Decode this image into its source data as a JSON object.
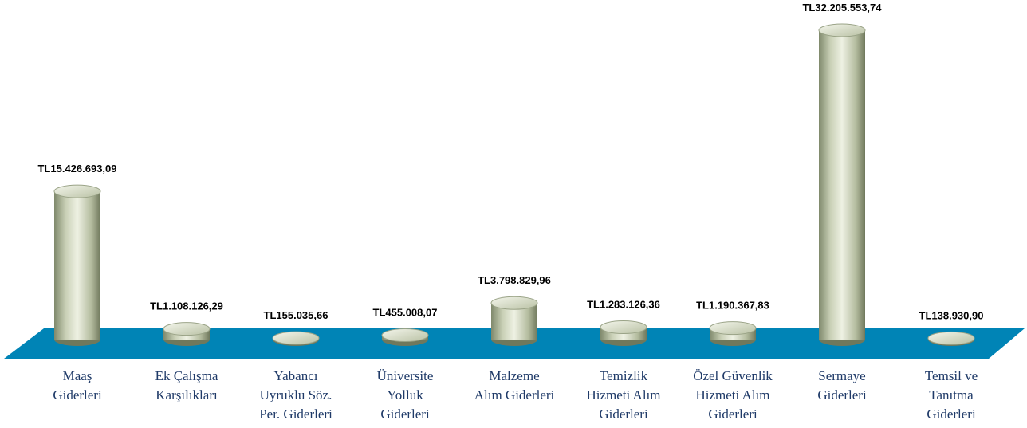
{
  "chart_data": {
    "type": "cylinder-bar",
    "categories": [
      [
        "Maaş",
        "Giderleri"
      ],
      [
        "Ek Çalışma",
        "Karşılıkları"
      ],
      [
        "Yabancı",
        "Uyruklu Söz.",
        "Per. Giderleri"
      ],
      [
        "Üniversite",
        "Yolluk",
        "Giderleri"
      ],
      [
        "Malzeme",
        "Alım Giderleri"
      ],
      [
        "Temizlik",
        "Hizmeti Alım",
        "Giderleri"
      ],
      [
        "Özel Güvenlik",
        "Hizmeti Alım",
        "Giderleri"
      ],
      [
        "Sermaye",
        "Giderleri"
      ],
      [
        "Temsil ve",
        "Tanıtma",
        "Giderleri"
      ]
    ],
    "values": [
      15426693.09,
      1108126.29,
      155035.66,
      455008.07,
      3798829.96,
      1283126.36,
      1190367.83,
      32205553.74,
      138930.9
    ],
    "value_labels": [
      "TL15.426.693,09",
      "TL1.108.126,29",
      "TL155.035,66",
      "TL455.008,07",
      "TL3.798.829,96",
      "TL1.283.126,36",
      "TL1.190.367,83",
      "TL32.205.553,74",
      "TL138.930,90"
    ],
    "color": "#d4dbc2",
    "floor_color": "#0084b6"
  }
}
